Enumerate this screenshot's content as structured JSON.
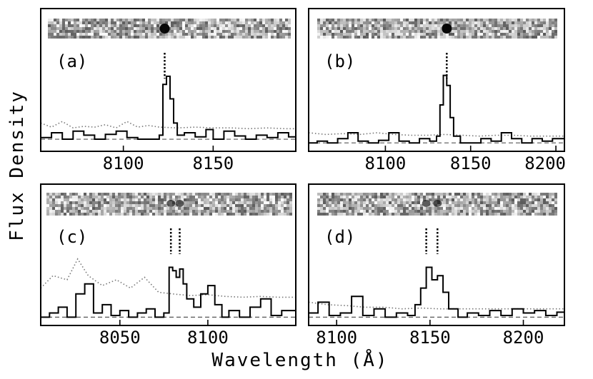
{
  "figure": {
    "ylabel": "Flux Density",
    "xlabel": "Wavelength (Å)"
  },
  "chart_data": [
    {
      "type": "line",
      "panel_label": "(a)",
      "xlim": [
        8054,
        8196
      ],
      "xticks": [
        8100,
        8150
      ],
      "ylim": [
        -0.15,
        1.0
      ],
      "markers": [
        8123
      ],
      "series": [
        {
          "x": [
            8054,
            8060,
            8066,
            8072,
            8078,
            8084,
            8090,
            8096,
            8102,
            8108,
            8114,
            8118,
            8120,
            8122,
            8124,
            8126,
            8128,
            8130,
            8134,
            8140,
            8146,
            8150,
            8156,
            8162,
            8168,
            8174,
            8180,
            8186,
            8192,
            8196
          ],
          "y": [
            0.02,
            0.08,
            0.0,
            0.1,
            0.05,
            0.0,
            0.06,
            0.1,
            0.02,
            0.0,
            0.0,
            0.0,
            0.05,
            0.68,
            0.78,
            0.5,
            0.2,
            0.05,
            0.08,
            0.03,
            0.12,
            0.0,
            0.1,
            0.04,
            0.0,
            0.05,
            0.02,
            0.08,
            0.03,
            0.05
          ]
        },
        {
          "x": [
            8054,
            8060,
            8066,
            8072,
            8078,
            8084,
            8090,
            8096,
            8102,
            8108,
            8114,
            8120,
            8130,
            8140,
            8150,
            8160,
            8170,
            8180,
            8190,
            8196
          ],
          "y": [
            0.2,
            0.15,
            0.22,
            0.14,
            0.16,
            0.15,
            0.18,
            0.14,
            0.22,
            0.15,
            0.17,
            0.15,
            0.14,
            0.15,
            0.14,
            0.14,
            0.13,
            0.14,
            0.13,
            0.13
          ]
        }
      ]
    },
    {
      "type": "line",
      "panel_label": "(b)",
      "xlim": [
        8055,
        8205
      ],
      "xticks": [
        8100,
        8150,
        8200
      ],
      "ylim": [
        -0.1,
        1.0
      ],
      "markers": [
        8136
      ],
      "series": [
        {
          "x": [
            8055,
            8060,
            8066,
            8072,
            8078,
            8084,
            8090,
            8096,
            8102,
            8108,
            8114,
            8120,
            8126,
            8130,
            8132,
            8134,
            8136,
            8138,
            8140,
            8144,
            8150,
            8156,
            8162,
            8168,
            8174,
            8180,
            8186,
            8192,
            8198,
            8205
          ],
          "y": [
            0.0,
            0.02,
            0.0,
            0.05,
            0.12,
            0.02,
            0.0,
            0.03,
            0.12,
            0.02,
            0.0,
            0.05,
            0.02,
            0.08,
            0.45,
            0.8,
            0.68,
            0.3,
            0.08,
            0.0,
            0.0,
            0.05,
            0.02,
            0.12,
            0.05,
            0.0,
            0.05,
            0.02,
            0.05,
            0.18
          ]
        },
        {
          "x": [
            8055,
            8065,
            8075,
            8085,
            8095,
            8105,
            8115,
            8125,
            8135,
            8145,
            8155,
            8165,
            8175,
            8185,
            8195,
            8205
          ],
          "y": [
            0.12,
            0.1,
            0.11,
            0.1,
            0.12,
            0.1,
            0.09,
            0.09,
            0.1,
            0.09,
            0.08,
            0.09,
            0.09,
            0.08,
            0.08,
            0.08
          ]
        }
      ]
    },
    {
      "type": "line",
      "panel_label": "(c)",
      "xlim": [
        8005,
        8150
      ],
      "xticks": [
        8050,
        8100
      ],
      "ylim": [
        -0.1,
        1.0
      ],
      "markers": [
        8079,
        8084
      ],
      "series": [
        {
          "x": [
            8005,
            8010,
            8015,
            8020,
            8025,
            8030,
            8035,
            8040,
            8045,
            8050,
            8055,
            8060,
            8065,
            8070,
            8075,
            8078,
            8080,
            8082,
            8084,
            8086,
            8088,
            8092,
            8096,
            8100,
            8104,
            8108,
            8112,
            8118,
            8124,
            8130,
            8136,
            8142,
            8150
          ],
          "y": [
            0.0,
            0.05,
            0.12,
            0.0,
            0.28,
            0.4,
            0.05,
            0.15,
            0.02,
            0.08,
            0.0,
            0.05,
            0.1,
            0.0,
            0.05,
            0.6,
            0.56,
            0.48,
            0.58,
            0.4,
            0.22,
            0.12,
            0.28,
            0.38,
            0.15,
            0.0,
            0.08,
            0.0,
            0.12,
            0.22,
            0.02,
            0.08,
            0.35
          ]
        },
        {
          "x": [
            8005,
            8012,
            8020,
            8026,
            8032,
            8040,
            8048,
            8056,
            8064,
            8072,
            8080,
            8090,
            8100,
            8110,
            8120,
            8130,
            8140,
            8150
          ],
          "y": [
            0.35,
            0.5,
            0.45,
            0.7,
            0.5,
            0.38,
            0.45,
            0.35,
            0.48,
            0.3,
            0.28,
            0.26,
            0.27,
            0.25,
            0.24,
            0.25,
            0.24,
            0.24
          ]
        }
      ]
    },
    {
      "type": "line",
      "panel_label": "(d)",
      "xlim": [
        8085,
        8222
      ],
      "xticks": [
        8100,
        8150,
        8200
      ],
      "ylim": [
        -0.1,
        1.0
      ],
      "markers": [
        8148,
        8154
      ],
      "series": [
        {
          "x": [
            8085,
            8090,
            8096,
            8102,
            8108,
            8114,
            8120,
            8126,
            8132,
            8138,
            8142,
            8145,
            8148,
            8151,
            8154,
            8157,
            8160,
            8165,
            8170,
            8176,
            8182,
            8188,
            8194,
            8200,
            8206,
            8212,
            8218,
            8222
          ],
          "y": [
            0.05,
            0.18,
            0.02,
            0.05,
            0.25,
            0.02,
            0.1,
            0.0,
            0.05,
            0.02,
            0.15,
            0.35,
            0.6,
            0.45,
            0.5,
            0.3,
            0.1,
            0.0,
            0.05,
            0.02,
            0.08,
            0.02,
            0.1,
            0.05,
            0.08,
            0.02,
            0.06,
            0.04
          ]
        },
        {
          "x": [
            8085,
            8095,
            8105,
            8115,
            8125,
            8135,
            8145,
            8155,
            8165,
            8175,
            8185,
            8195,
            8205,
            8215,
            8222
          ],
          "y": [
            0.18,
            0.15,
            0.14,
            0.12,
            0.12,
            0.1,
            0.11,
            0.1,
            0.1,
            0.1,
            0.1,
            0.1,
            0.1,
            0.1,
            0.1
          ]
        }
      ]
    }
  ]
}
